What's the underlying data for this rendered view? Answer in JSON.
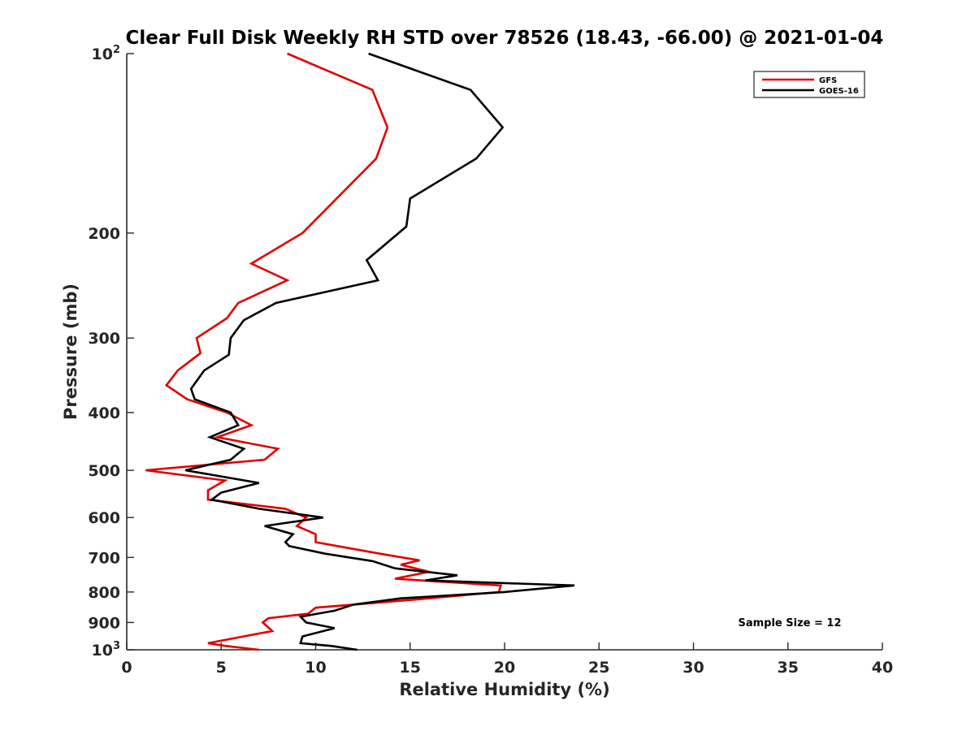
{
  "chart_data": {
    "type": "line",
    "title": "Clear Full Disk Weekly RH STD over 78526 (18.43, -66.00) @ 2021-01-04",
    "xlabel": "Relative Humidity (%)",
    "ylabel": "Pressure (mb)",
    "xlim": [
      0,
      40
    ],
    "ylim": [
      100,
      1000
    ],
    "y_scale": "log",
    "y_reversed": true,
    "grid": false,
    "legend_position": "top-right",
    "x_ticks": [
      0,
      5,
      10,
      15,
      20,
      25,
      30,
      35,
      40
    ],
    "x_tick_labels": [
      "0",
      "5",
      "10",
      "15",
      "20",
      "25",
      "30",
      "35",
      "40"
    ],
    "y_ticks": [
      100,
      200,
      300,
      400,
      500,
      600,
      700,
      800,
      900,
      1000
    ],
    "y_tick_labels": [
      {
        "base": "10",
        "exp": "2"
      },
      {
        "base": "200",
        "exp": ""
      },
      {
        "base": "300",
        "exp": ""
      },
      {
        "base": "400",
        "exp": ""
      },
      {
        "base": "500",
        "exp": ""
      },
      {
        "base": "600",
        "exp": ""
      },
      {
        "base": "700",
        "exp": ""
      },
      {
        "base": "800",
        "exp": ""
      },
      {
        "base": "900",
        "exp": ""
      },
      {
        "base": "10",
        "exp": "3"
      }
    ],
    "annotation": "Sample Size = 12",
    "series": [
      {
        "name": "GFS",
        "color": "#e00000",
        "points": [
          [
            8.5,
            100
          ],
          [
            13.0,
            115
          ],
          [
            13.8,
            133
          ],
          [
            13.2,
            150
          ],
          [
            9.3,
            200
          ],
          [
            6.6,
            225
          ],
          [
            8.5,
            240
          ],
          [
            5.9,
            262
          ],
          [
            5.3,
            278
          ],
          [
            3.7,
            300
          ],
          [
            3.9,
            318
          ],
          [
            2.7,
            340
          ],
          [
            2.1,
            360
          ],
          [
            3.2,
            380
          ],
          [
            5.3,
            400
          ],
          [
            6.6,
            420
          ],
          [
            4.8,
            440
          ],
          [
            8.0,
            460
          ],
          [
            7.3,
            480
          ],
          [
            1.0,
            500
          ],
          [
            5.2,
            520
          ],
          [
            4.3,
            540
          ],
          [
            4.3,
            560
          ],
          [
            8.4,
            580
          ],
          [
            9.5,
            600
          ],
          [
            9.0,
            620
          ],
          [
            10.0,
            640
          ],
          [
            10.0,
            660
          ],
          [
            13.4,
            690
          ],
          [
            15.5,
            708
          ],
          [
            14.5,
            720
          ],
          [
            16.0,
            740
          ],
          [
            14.2,
            760
          ],
          [
            19.8,
            780
          ],
          [
            19.7,
            800
          ],
          [
            15.0,
            825
          ],
          [
            10.0,
            850
          ],
          [
            9.6,
            870
          ],
          [
            7.5,
            885
          ],
          [
            7.2,
            900
          ],
          [
            7.7,
            930
          ],
          [
            5.4,
            960
          ],
          [
            4.3,
            975
          ],
          [
            5.2,
            985
          ],
          [
            7.0,
            1000
          ]
        ]
      },
      {
        "name": "GOES-16",
        "color": "#000000",
        "points": [
          [
            12.8,
            100
          ],
          [
            18.2,
            115
          ],
          [
            19.9,
            133
          ],
          [
            18.5,
            150
          ],
          [
            15.0,
            175
          ],
          [
            14.8,
            195
          ],
          [
            12.7,
            222
          ],
          [
            13.3,
            240
          ],
          [
            7.9,
            262
          ],
          [
            6.2,
            280
          ],
          [
            5.5,
            300
          ],
          [
            5.4,
            320
          ],
          [
            4.1,
            340
          ],
          [
            3.4,
            365
          ],
          [
            3.6,
            380
          ],
          [
            5.5,
            400
          ],
          [
            5.9,
            420
          ],
          [
            4.4,
            440
          ],
          [
            6.2,
            460
          ],
          [
            5.5,
            480
          ],
          [
            3.1,
            500
          ],
          [
            7.0,
            525
          ],
          [
            5.0,
            545
          ],
          [
            4.5,
            560
          ],
          [
            7.0,
            580
          ],
          [
            10.4,
            600
          ],
          [
            7.3,
            620
          ],
          [
            8.8,
            640
          ],
          [
            8.4,
            660
          ],
          [
            8.6,
            670
          ],
          [
            10.5,
            690
          ],
          [
            13.0,
            710
          ],
          [
            14.2,
            730
          ],
          [
            17.5,
            750
          ],
          [
            15.8,
            765
          ],
          [
            23.7,
            780
          ],
          [
            20.0,
            800
          ],
          [
            14.5,
            820
          ],
          [
            12.0,
            840
          ],
          [
            11.0,
            860
          ],
          [
            9.2,
            880
          ],
          [
            9.5,
            900
          ],
          [
            11.0,
            920
          ],
          [
            9.3,
            950
          ],
          [
            9.2,
            975
          ],
          [
            10.8,
            985
          ],
          [
            12.2,
            1000
          ]
        ]
      }
    ]
  }
}
